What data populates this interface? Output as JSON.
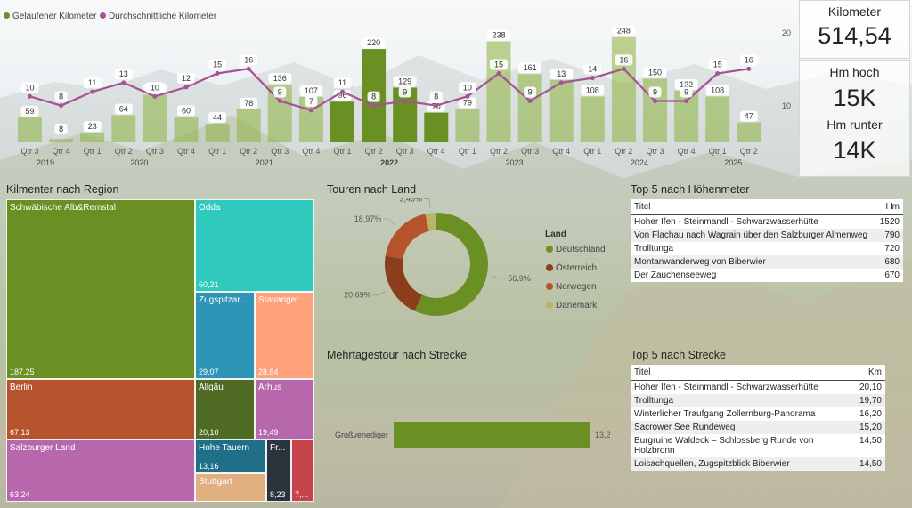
{
  "colors": {
    "green": "#6a8f22",
    "purple": "#a65296",
    "orange": "#b5532d",
    "brown": "#8a3e1c",
    "gold": "#b8b469"
  },
  "combo": {
    "legend": [
      "Gelaufener Kilometer",
      "Durchschnittliche Kilometer"
    ],
    "right_axis": [
      "20",
      "10"
    ],
    "year_labels": [
      {
        "label": "2019",
        "bold": false
      },
      {
        "label": "2020",
        "bold": false
      },
      {
        "label": "2021",
        "bold": false
      },
      {
        "label": "2022",
        "bold": true
      },
      {
        "label": "2023",
        "bold": false
      },
      {
        "label": "2024",
        "bold": false
      },
      {
        "label": "2025",
        "bold": false
      }
    ]
  },
  "chart_data": [
    {
      "type": "bar",
      "categories": [
        "Qtr 3",
        "Qtr 4",
        "Qtr 1",
        "Qtr 2",
        "Qtr 3",
        "Qtr 4",
        "Qtr 1",
        "Qtr 2",
        "Qtr 3",
        "Qtr 4",
        "Qtr 1",
        "Qtr 2",
        "Qtr 3",
        "Qtr 4",
        "Qtr 1",
        "Qtr 2",
        "Qtr 3",
        "Qtr 4",
        "Qtr 1",
        "Qtr 2",
        "Qtr 3",
        "Qtr 4",
        "Qtr 1",
        "Qtr 2"
      ],
      "year_of_category": [
        "2019",
        "2019",
        "2020",
        "2020",
        "2020",
        "2020",
        "2021",
        "2021",
        "2021",
        "2021",
        "2022",
        "2022",
        "2022",
        "2022",
        "2023",
        "2023",
        "2023",
        "2023",
        "2024",
        "2024",
        "2024",
        "2024",
        "2025",
        "2025"
      ],
      "series": [
        {
          "name": "Gelaufener Kilometer",
          "values": [
            59,
            8,
            23,
            64,
            112,
            60,
            44,
            78,
            136,
            107,
            96,
            220,
            129,
            70,
            79,
            238,
            161,
            147,
            108,
            248,
            150,
            122,
            108,
            47
          ],
          "highlighted": [
            false,
            false,
            false,
            false,
            false,
            false,
            false,
            false,
            false,
            false,
            true,
            true,
            true,
            true,
            false,
            false,
            false,
            false,
            false,
            false,
            false,
            false,
            false,
            false
          ]
        },
        {
          "name": "Durchschnittliche Kilometer",
          "values": [
            10,
            8,
            11,
            13,
            10,
            12,
            15,
            16,
            9,
            7,
            11,
            8,
            9,
            8,
            10,
            15,
            9,
            13,
            14,
            16,
            9,
            9,
            15,
            16
          ]
        }
      ],
      "ylim": [
        0,
        260
      ],
      "y2lim": [
        0,
        24
      ]
    },
    {
      "type": "pie",
      "title": "Touren nach Land",
      "legend_title": "Land",
      "categories": [
        "Deutschland",
        "Österreich",
        "Norwegen",
        "Dänemark"
      ],
      "values": [
        56.9,
        20.69,
        18.97,
        3.45
      ],
      "labels": [
        "56,9%",
        "20,69%",
        "18,97%",
        "3,45%"
      ],
      "colors": [
        "#6a8f22",
        "#8a3e1c",
        "#b5532d",
        "#b8b469"
      ]
    },
    {
      "type": "bar",
      "title": "Mehrtagestour nach Strecke",
      "categories": [
        "Großvenediger"
      ],
      "values": [
        13.2
      ],
      "labels": [
        "13,2"
      ]
    }
  ],
  "kpis": [
    {
      "label": "Kilometer",
      "value": "514,54"
    },
    {
      "label": "Hm hoch",
      "value": "15K"
    },
    {
      "label": "Hm runter",
      "value": "14K"
    }
  ],
  "treemap": {
    "title": "Kilmenter nach Region",
    "items": [
      {
        "name": "Schwäbische Alb&Remstal",
        "value": "187,25",
        "color": "#6a8f22"
      },
      {
        "name": "Odda",
        "value": "60,21",
        "color": "#30c9be"
      },
      {
        "name": "Zugspitzar...",
        "value": "29,07",
        "color": "#2e95b6"
      },
      {
        "name": "Stavanger",
        "value": "28,84",
        "color": "#fea27d"
      },
      {
        "name": "Berlin",
        "value": "67,13",
        "color": "#b5532d"
      },
      {
        "name": "Allgäu",
        "value": "20,10",
        "color": "#4f6b24"
      },
      {
        "name": "Arhus",
        "value": "19,49",
        "color": "#b768ac"
      },
      {
        "name": "Salzburger Land",
        "value": "63,24",
        "color": "#b768ac"
      },
      {
        "name": "Hohe Tauern",
        "value": "13,16",
        "color": "#1e6f87"
      },
      {
        "name": "Stuttgart",
        "value": "",
        "color": "#e0b080"
      },
      {
        "name": "Fr...",
        "value": "8,23",
        "color": "#2a343c"
      },
      {
        "name": "",
        "value": "7,...",
        "color": "#c7434b"
      }
    ]
  },
  "top_hm": {
    "title": "Top 5 nach Höhenmeter",
    "headers": [
      "Titel",
      "Hm"
    ],
    "rows": [
      [
        "Hoher Ifen - Steinmandl - Schwarzwasserhütte",
        "1520"
      ],
      [
        "Von Flachau nach Wagrain über den Salzburger Almenweg",
        "790"
      ],
      [
        "Trolltunga",
        "720"
      ],
      [
        "Montanwanderweg von Biberwier",
        "680"
      ],
      [
        "Der Zauchenseeweg",
        "670"
      ]
    ]
  },
  "top_km": {
    "title": "Top 5 nach Strecke",
    "headers": [
      "Titel",
      "Km"
    ],
    "rows": [
      [
        "Hoher Ifen - Steinmandl - Schwarzwasserhütte",
        "20,10"
      ],
      [
        "Trolltunga",
        "19,70"
      ],
      [
        "Winterlicher Traufgang Zollernburg-Panorama",
        "16,20"
      ],
      [
        "Sacrower See Rundeweg",
        "15,20"
      ],
      [
        "Burgruine Waldeck – Schlossberg Runde von Holzbronn",
        "14,50"
      ],
      [
        "Loisachquellen, Zugspitzblick Biberwier",
        "14,50"
      ]
    ]
  }
}
